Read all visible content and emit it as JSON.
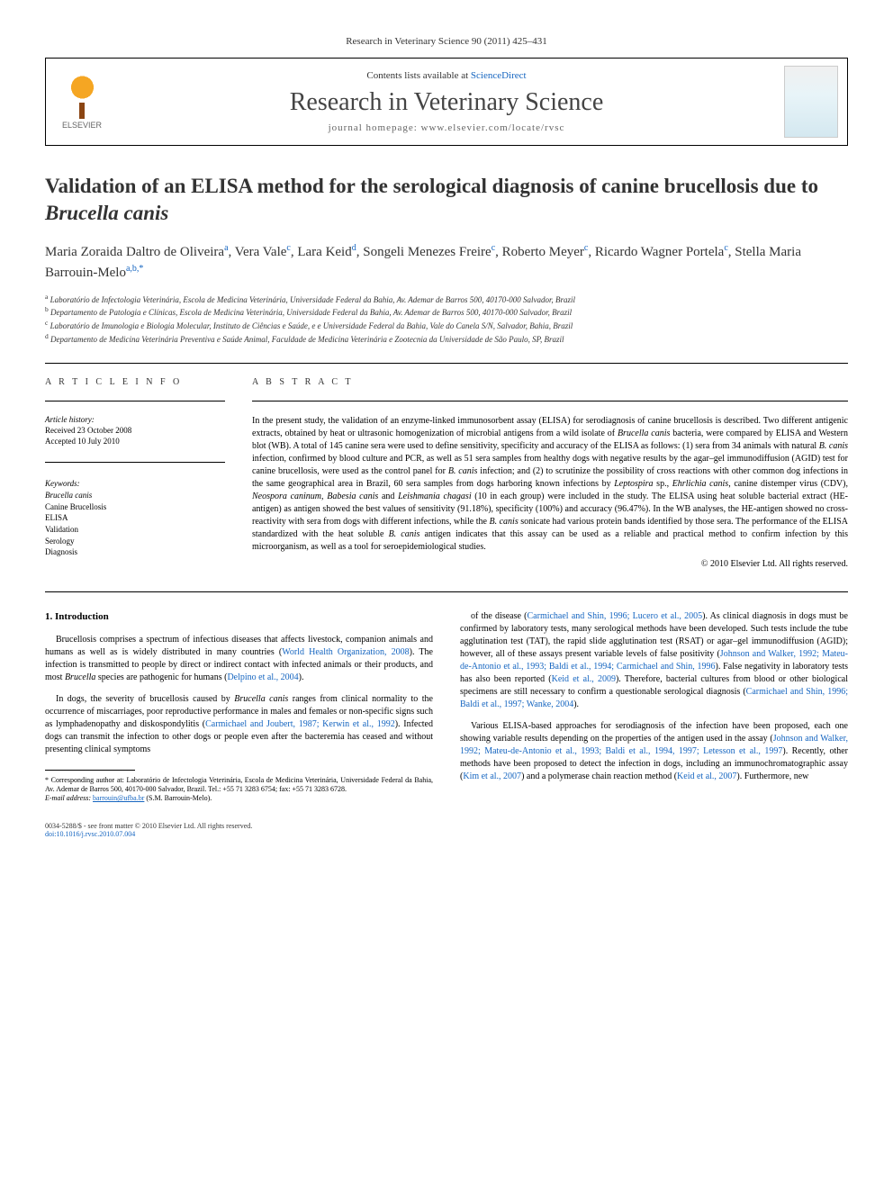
{
  "header": {
    "reference": "Research in Veterinary Science 90 (2011) 425–431",
    "contents_prefix": "Contents lists available at ",
    "contents_link": "ScienceDirect",
    "journal_name": "Research in Veterinary Science",
    "homepage": "journal homepage: www.elsevier.com/locate/rvsc",
    "elsevier_label": "ELSEVIER"
  },
  "article": {
    "title_part1": "Validation of an ELISA method for the serological diagnosis of canine brucellosis due to ",
    "title_italic": "Brucella canis",
    "authors_html": "Maria Zoraida Daltro de Oliveira|a|, Vera Vale|c|, Lara Keid|d|, Songeli Menezes Freire|c|, Roberto Meyer|c|, Ricardo Wagner Portela|c|, Stella Maria Barrouin-Melo|a,b,*",
    "authors": [
      {
        "name": "Maria Zoraida Daltro de Oliveira",
        "sup": "a"
      },
      {
        "name": "Vera Vale",
        "sup": "c"
      },
      {
        "name": "Lara Keid",
        "sup": "d"
      },
      {
        "name": "Songeli Menezes Freire",
        "sup": "c"
      },
      {
        "name": "Roberto Meyer",
        "sup": "c"
      },
      {
        "name": "Ricardo Wagner Portela",
        "sup": "c"
      },
      {
        "name": "Stella Maria Barrouin-Melo",
        "sup": "a,b,*"
      }
    ],
    "affiliations": [
      {
        "sup": "a",
        "text": "Laboratório de Infectologia Veterinária, Escola de Medicina Veterinária, Universidade Federal da Bahia, Av. Ademar de Barros 500, 40170-000 Salvador, Brazil"
      },
      {
        "sup": "b",
        "text": "Departamento de Patologia e Clínicas, Escola de Medicina Veterinária, Universidade Federal da Bahia, Av. Ademar de Barros 500, 40170-000 Salvador, Brazil"
      },
      {
        "sup": "c",
        "text": "Laboratório de Imunologia e Biologia Molecular, Instituto de Ciências e Saúde, e e Universidade Federal da Bahia, Vale do Canela S/N, Salvador, Bahia, Brazil"
      },
      {
        "sup": "d",
        "text": "Departamento de Medicina Veterinária Preventiva e Saúde Animal, Faculdade de Medicina Veterinária e Zootecnia da Universidade de São Paulo, SP, Brazil"
      }
    ]
  },
  "info": {
    "heading": "A R T I C L E   I N F O",
    "history_label": "Article history:",
    "received": "Received 23 October 2008",
    "accepted": "Accepted 10 July 2010",
    "keywords_label": "Keywords:",
    "keywords": [
      "Brucella canis",
      "Canine Brucellosis",
      "ELISA",
      "Validation",
      "Serology",
      "Diagnosis"
    ]
  },
  "abstract": {
    "heading": "A B S T R A C T",
    "text": "In the present study, the validation of an enzyme-linked immunosorbent assay (ELISA) for serodiagnosis of canine brucellosis is described. Two different antigenic extracts, obtained by heat or ultrasonic homogenization of microbial antigens from a wild isolate of Brucella canis bacteria, were compared by ELISA and Western blot (WB). A total of 145 canine sera were used to define sensitivity, specificity and accuracy of the ELISA as follows: (1) sera from 34 animals with natural B. canis infection, confirmed by blood culture and PCR, as well as 51 sera samples from healthy dogs with negative results by the agar–gel immunodiffusion (AGID) test for canine brucellosis, were used as the control panel for B. canis infection; and (2) to scrutinize the possibility of cross reactions with other common dog infections in the same geographical area in Brazil, 60 sera samples from dogs harboring known infections by Leptospira sp., Ehrlichia canis, canine distemper virus (CDV), Neospora caninum, Babesia canis and Leishmania chagasi (10 in each group) were included in the study. The ELISA using heat soluble bacterial extract (HE-antigen) as antigen showed the best values of sensitivity (91.18%), specificity (100%) and accuracy (96.47%). In the WB analyses, the HE-antigen showed no cross-reactivity with sera from dogs with different infections, while the B. canis sonicate had various protein bands identified by those sera. The performance of the ELISA standardized with the heat soluble B. canis antigen indicates that this assay can be used as a reliable and practical method to confirm infection by this microorganism, as well as a tool for seroepidemiological studies.",
    "copyright": "© 2010 Elsevier Ltd. All rights reserved."
  },
  "body": {
    "intro_heading": "1. Introduction",
    "col1_p1": "Brucellosis comprises a spectrum of infectious diseases that affects livestock, companion animals and humans as well as is widely distributed in many countries (World Health Organization, 2008). The infection is transmitted to people by direct or indirect contact with infected animals or their products, and most Brucella species are pathogenic for humans (Delpino et al., 2004).",
    "col1_p2": "In dogs, the severity of brucellosis caused by Brucella canis ranges from clinical normality to the occurrence of miscarriages, poor reproductive performance in males and females or non-specific signs such as lymphadenopathy and diskospondylitis (Carmichael and Joubert, 1987; Kerwin et al., 1992). Infected dogs can transmit the infection to other dogs or people even after the bacteremia has ceased and without presenting clinical symptoms",
    "col2_p1": "of the disease (Carmichael and Shin, 1996; Lucero et al., 2005). As clinical diagnosis in dogs must be confirmed by laboratory tests, many serological methods have been developed. Such tests include the tube agglutination test (TAT), the rapid slide agglutination test (RSAT) or agar–gel immunodiffusion (AGID); however, all of these assays present variable levels of false positivity (Johnson and Walker, 1992; Mateu-de-Antonio et al., 1993; Baldi et al., 1994; Carmichael and Shin, 1996). False negativity in laboratory tests has also been reported (Keid et al., 2009). Therefore, bacterial cultures from blood or other biological specimens are still necessary to confirm a questionable serological diagnosis (Carmichael and Shin, 1996; Baldi et al., 1997; Wanke, 2004).",
    "col2_p2": "Various ELISA-based approaches for serodiagnosis of the infection have been proposed, each one showing variable results depending on the properties of the antigen used in the assay (Johnson and Walker, 1992; Mateu-de-Antonio et al., 1993; Baldi et al., 1994, 1997; Letesson et al., 1997). Recently, other methods have been proposed to detect the infection in dogs, including an immunochromatographic assay (Kim et al., 2007) and a polymerase chain reaction method (Keid et al., 2007). Furthermore, new"
  },
  "footnote": {
    "corr": "* Corresponding author at: Laboratório de Infectologia Veterinária, Escola de Medicina Veterinária, Universidade Federal da Bahia, Av. Ademar de Barros 500, 40170-000 Salvador, Brazil. Tel.: +55 71 3283 6754; fax: +55 71 3283 6728.",
    "email_label": "E-mail address: ",
    "email": "barrouin@ufba.br",
    "email_suffix": " (S.M. Barrouin-Melo)."
  },
  "footer": {
    "left1": "0034-5288/$ - see front matter © 2010 Elsevier Ltd. All rights reserved.",
    "left2": "doi:10.1016/j.rvsc.2010.07.004"
  },
  "colors": {
    "link": "#1565c0",
    "text": "#000000",
    "heading": "#333333"
  }
}
